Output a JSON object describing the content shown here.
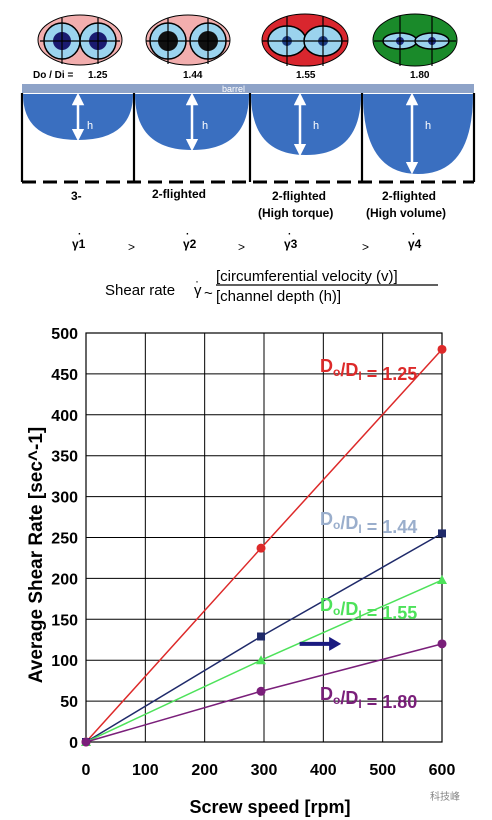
{
  "top_diagram": {
    "ratio_prefix": "Do / Di =",
    "ratios": [
      "1.25",
      "1.44",
      "1.55",
      "1.80"
    ],
    "barrel_label": "barrel",
    "depth_symbol": "h",
    "screw_types": [
      {
        "line1": "3-",
        "line2": ""
      },
      {
        "line1": "2-flighted",
        "line2": ""
      },
      {
        "line1": "2-flighted",
        "line2": "(High torque)"
      },
      {
        "line1": "2-flighted",
        "line2": "(High volume)"
      }
    ],
    "gamma_labels": [
      "γ1",
      "γ2",
      "γ3",
      "γ4"
    ],
    "comparisons": [
      ">",
      ">",
      ">"
    ],
    "eyes": [
      {
        "outer": "#f2aeae",
        "inner": "#9bd3ee",
        "core": "#1a1a70"
      },
      {
        "outer": "#f2aeae",
        "inner": "#9bd3ee",
        "core": "#111111"
      },
      {
        "outer": "#d9262e",
        "inner": "#9bd3ee",
        "core": "#1a3a80"
      },
      {
        "outer": "#1a8a2a",
        "inner": "#9bd3ee",
        "core": "#1a2a80"
      }
    ]
  },
  "formula": {
    "prefix": "Shear rate",
    "gamma": "γ",
    "approx": "~",
    "numerator": "[circumferential velocity (v)]",
    "denominator": "[channel depth (h)]"
  },
  "chart_data": {
    "type": "line",
    "xlabel": "Screw speed [rpm]",
    "ylabel": "Average Shear Rate [sec^-1]",
    "xlim": [
      0,
      600
    ],
    "ylim": [
      0,
      500
    ],
    "x_ticks": [
      "0",
      "100",
      "200",
      "300",
      "400",
      "500",
      "600"
    ],
    "y_ticks": [
      "0",
      "50",
      "100",
      "150",
      "200",
      "250",
      "300",
      "350",
      "400",
      "450",
      "500"
    ],
    "grid": true,
    "series": [
      {
        "name": "Do/DI = 1.25",
        "color": "#dd2a2a",
        "marker": "circle",
        "x": [
          0,
          295,
          600
        ],
        "y": [
          0,
          237,
          480
        ]
      },
      {
        "name": "Do/DI = 1.44",
        "color": "#1f2a6a",
        "marker": "square",
        "x": [
          0,
          295,
          600
        ],
        "y": [
          0,
          129,
          255
        ]
      },
      {
        "name": "Do/DI = 1.55",
        "color": "#4de25a",
        "marker": "triangle",
        "x": [
          0,
          295,
          600
        ],
        "y": [
          0,
          100,
          198
        ]
      },
      {
        "name": "Do/DI = 1.80",
        "color": "#7a1f7a",
        "marker": "circle",
        "x": [
          0,
          295,
          600
        ],
        "y": [
          0,
          62,
          120
        ]
      }
    ],
    "series_labels": [
      {
        "main": "D",
        "sub1": "o",
        "mid": "/D",
        "sub2": "I",
        "value": " = 1.25",
        "color": "#dd2a2a"
      },
      {
        "main": "D",
        "sub1": "o",
        "mid": "/D",
        "sub2": "I",
        "value": " = 1.44",
        "color": "#9aaecc"
      },
      {
        "main": "D",
        "sub1": "o",
        "mid": "/D",
        "sub2": "I",
        "value": " = 1.55",
        "color": "#4de25a"
      },
      {
        "main": "D",
        "sub1": "o",
        "mid": "/D",
        "sub2": "I",
        "value": " = 1.80",
        "color": "#7a1f7a"
      }
    ],
    "arrow": {
      "from": [
        360,
        120
      ],
      "to": [
        430,
        120
      ],
      "color": "#1a1a80"
    }
  },
  "watermark": {
    "text": "科技峰"
  }
}
